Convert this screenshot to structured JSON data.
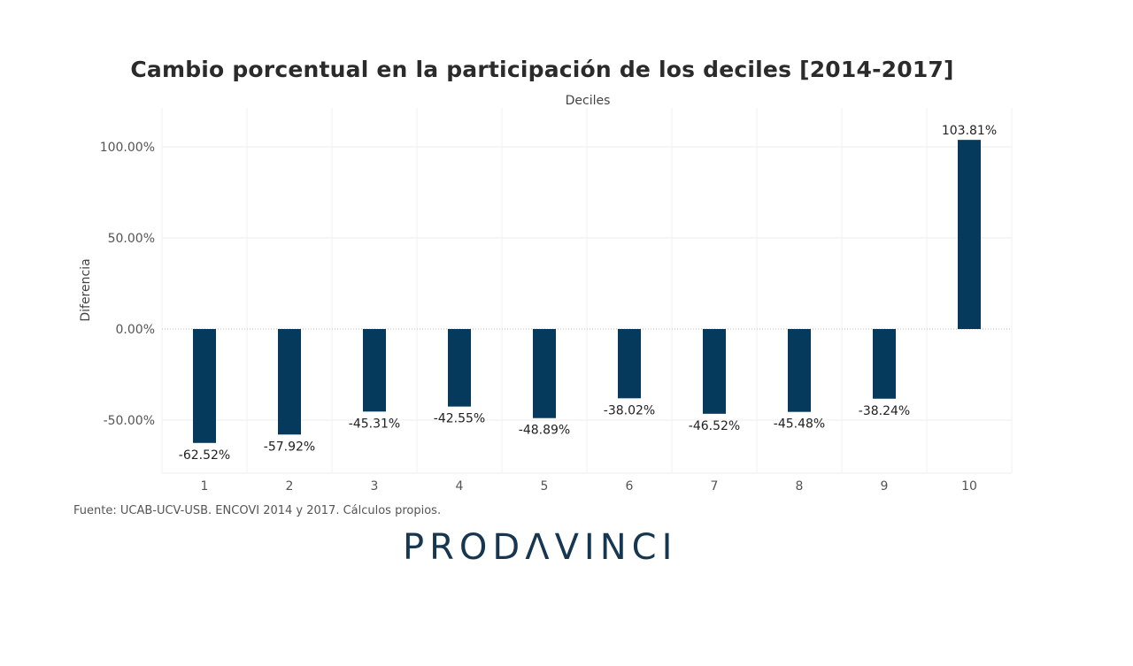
{
  "chart_data": {
    "type": "bar",
    "title": "Cambio porcentual en la participación de los deciles [2014-2017]",
    "xlabel": "Deciles",
    "ylabel": "Diferencia",
    "categories": [
      "1",
      "2",
      "3",
      "4",
      "5",
      "6",
      "7",
      "8",
      "9",
      "10"
    ],
    "values": [
      -62.52,
      -57.92,
      -45.31,
      -42.55,
      -48.89,
      -38.02,
      -46.52,
      -45.48,
      -38.24,
      103.81
    ],
    "data_labels": [
      "-62.52%",
      "-57.92%",
      "-45.31%",
      "-42.55%",
      "-48.89%",
      "-38.02%",
      "-46.52%",
      "-45.48%",
      "-38.24%",
      "103.81%"
    ],
    "yticks": [
      -50,
      0,
      50,
      100
    ],
    "ytick_labels": [
      "-50.00%",
      "0.00%",
      "50.00%",
      "100.00%"
    ],
    "ylim": [
      -80,
      122
    ],
    "grid": true,
    "bar_color": "#053a5c",
    "legend": "none"
  },
  "source": "Fuente: UCAB-UCV-USB. ENCOVI 2014 y 2017. Cálculos propios.",
  "logo": "PRODΛVINCI"
}
